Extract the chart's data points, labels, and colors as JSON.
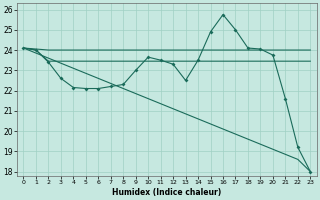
{
  "xlabel": "Humidex (Indice chaleur)",
  "xlim": [
    0,
    23
  ],
  "ylim": [
    17.8,
    26.3
  ],
  "yticks": [
    18,
    19,
    20,
    21,
    22,
    23,
    24,
    25,
    26
  ],
  "xticks": [
    0,
    1,
    2,
    3,
    4,
    5,
    6,
    7,
    8,
    9,
    10,
    11,
    12,
    13,
    14,
    15,
    16,
    17,
    18,
    19,
    20,
    21,
    22,
    23
  ],
  "bg_color": "#c6e8e0",
  "grid_color": "#a0d0c4",
  "line_color": "#1a6b5a",
  "curve1_x": [
    0,
    1,
    2,
    3,
    4,
    5,
    6,
    7,
    8,
    9,
    10,
    11,
    12,
    13,
    14,
    15,
    16,
    17,
    18,
    19,
    20,
    21,
    22,
    23
  ],
  "curve1_y": [
    24.1,
    24.05,
    24.0,
    24.0,
    24.0,
    24.0,
    24.0,
    24.0,
    24.0,
    24.0,
    24.0,
    24.0,
    24.0,
    24.0,
    24.0,
    24.0,
    24.0,
    24.0,
    24.0,
    24.0,
    24.0,
    24.0,
    24.0,
    24.0
  ],
  "curve2_x": [
    0,
    1,
    2,
    3,
    4,
    5,
    6,
    7,
    8,
    9,
    10,
    11,
    12,
    13,
    14,
    15,
    16,
    17,
    18,
    19,
    20,
    21,
    22,
    23
  ],
  "curve2_y": [
    24.1,
    24.0,
    23.45,
    23.45,
    23.45,
    23.45,
    23.45,
    23.45,
    23.45,
    23.45,
    23.45,
    23.45,
    23.45,
    23.45,
    23.45,
    23.45,
    23.45,
    23.45,
    23.45,
    23.45,
    23.45,
    23.45,
    23.45,
    23.45
  ],
  "curve3_x": [
    0,
    1,
    2,
    3,
    4,
    5,
    6,
    7,
    8,
    9,
    10,
    11,
    12,
    13,
    14,
    15,
    16,
    17,
    18,
    19,
    20,
    21,
    22,
    23
  ],
  "curve3_y": [
    24.1,
    24.0,
    23.4,
    22.6,
    22.15,
    22.1,
    22.1,
    22.2,
    22.3,
    23.0,
    23.65,
    23.5,
    23.3,
    22.5,
    23.5,
    24.9,
    25.75,
    25.0,
    24.1,
    24.05,
    23.75,
    21.6,
    19.2,
    18.0
  ],
  "curve4_x": [
    0,
    1,
    2,
    3,
    4,
    5,
    6,
    7,
    8,
    9,
    10,
    11,
    12,
    13,
    14,
    15,
    16,
    17,
    18,
    19,
    20,
    21,
    22,
    23
  ],
  "curve4_y": [
    24.1,
    23.85,
    23.6,
    23.35,
    23.1,
    22.85,
    22.6,
    22.35,
    22.1,
    21.85,
    21.6,
    21.35,
    21.1,
    20.85,
    20.6,
    20.35,
    20.1,
    19.85,
    19.6,
    19.35,
    19.1,
    18.85,
    18.6,
    18.0
  ]
}
